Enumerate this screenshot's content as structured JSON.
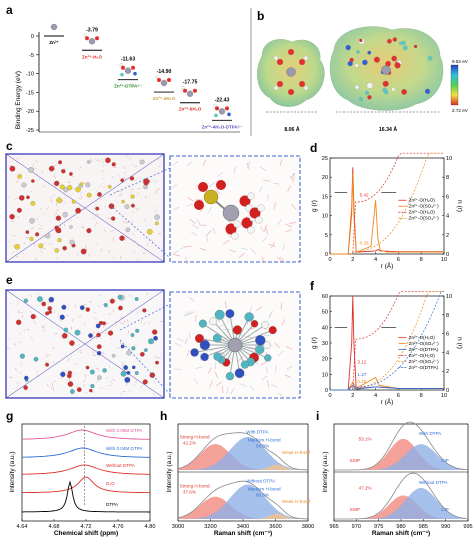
{
  "panels": {
    "a": "a",
    "b": "b",
    "c": "c",
    "d": "d",
    "e": "e",
    "f": "f",
    "g": "g",
    "h": "h",
    "i": "i"
  },
  "panel_a": {
    "ylabel": "Binding Energy (eV)",
    "yticks": [
      "0",
      "-5",
      "-10",
      "-15",
      "-20",
      "-25"
    ],
    "species": [
      {
        "label": "Zn²⁺",
        "energy": 0,
        "value_label": ""
      },
      {
        "label": "Zn²⁺-H₂O",
        "energy": -3.79,
        "value_label": "-3.79"
      },
      {
        "label": "Zn²⁺-DTPA⁵⁻",
        "energy": -11.63,
        "value_label": "-11.63"
      },
      {
        "label": "Zn²⁺-4H₂O",
        "energy": -14.9,
        "value_label": "-14.90"
      },
      {
        "label": "Zn²⁺-6H₂O",
        "energy": -17.75,
        "value_label": "-17.75"
      },
      {
        "label": "Zn²⁺-4H₂O-DTPA⁵⁻",
        "energy": -22.43,
        "value_label": "-22.43"
      }
    ]
  },
  "panel_b": {
    "size_left": "8.06 Å",
    "size_right": "16.34 Å",
    "colorbar_max": "9.52 eV",
    "colorbar_min": "2.72 eV"
  },
  "panel_d": {
    "xlabel": "r (Å)",
    "ylabel_left": "g (r)",
    "ylabel_right": "n (r)",
    "xticks": [
      "0",
      "2",
      "4",
      "6",
      "8",
      "10"
    ],
    "yticks_left": [
      "0",
      "5",
      "10",
      "15",
      "20",
      "25"
    ],
    "yticks_right": [
      "0",
      "2",
      "4",
      "6",
      "8",
      "10"
    ],
    "annotations": [
      "5.42",
      "0.28"
    ],
    "legend": [
      "Zn²⁺-O(H₂O)",
      "Zn²⁺-O(SO₄²⁻)",
      "Zn²⁺-O(H₂O)",
      "Zn²⁺-O(SO₄²⁻)"
    ]
  },
  "panel_f": {
    "xlabel": "r (Å)",
    "ylabel_left": "g (r)",
    "ylabel_right": "n (r)",
    "xticks": [
      "0",
      "2",
      "4",
      "6",
      "8",
      "10"
    ],
    "yticks_left": [
      "0",
      "10",
      "20",
      "30",
      "40",
      "50",
      "60"
    ],
    "yticks_right": [
      "0",
      "2",
      "4",
      "6",
      "8",
      "10"
    ],
    "annotations": [
      "3.12",
      "1.27",
      "0.18"
    ],
    "legend": [
      "Zn²⁺-O(H₂O)",
      "Zn²⁺-O(SO₄²⁻)",
      "Zn²⁺-O(DTPA)",
      "Zn²⁺-O(H₂O)",
      "Zn²⁺-O(SO₄²⁻)",
      "Zn²⁺-O(DTPA)"
    ]
  },
  "panel_g": {
    "xlabel": "Chemical shift (ppm)",
    "ylabel": "Intensity (a.u.)",
    "xticks": [
      "4.64",
      "4.68",
      "4.72",
      "4.76",
      "4.80"
    ],
    "traces": [
      "With 0.08M DTPA",
      "With 0.04M DTPA",
      "Without DTPA",
      "D₂O",
      "DTPA"
    ]
  },
  "panel_h": {
    "xlabel": "Raman shift (cm⁻¹)",
    "ylabel": "Intensity (a.u.)",
    "xticks": [
      "3000",
      "3200",
      "3400",
      "3600",
      "3800"
    ],
    "top": {
      "title": "With DTPA",
      "strong": "Strong H-bond",
      "strong_pct": "42.2%",
      "medium": "Medium H-bond",
      "medium_pct": "54.9%",
      "weak": "Weak H-bond"
    },
    "bottom": {
      "title": "Without DTPA",
      "strong": "Strong H-bond",
      "strong_pct": "37.6%",
      "medium": "Medium H-bond",
      "medium_pct": "60.8%",
      "weak": "Weak H-bond"
    }
  },
  "panel_i": {
    "xlabel": "Raman shift (cm⁻¹)",
    "ylabel": "Intensity (a.u.)",
    "xticks": [
      "965",
      "970",
      "975",
      "980",
      "985",
      "990",
      "995"
    ],
    "top": {
      "title": "With DTPA",
      "pct": "53.1%",
      "ssip": "SSIP",
      "cip": "CIP"
    },
    "bottom": {
      "title": "Without DTPA",
      "pct": "47.2%",
      "ssip": "SSIP",
      "cip": "CIP"
    }
  },
  "chart_data": [
    {
      "type": "scatter",
      "panel": "a",
      "ylabel": "Binding Energy (eV)",
      "ylim": [
        -25,
        0
      ],
      "categories": [
        "Zn²⁺",
        "Zn²⁺-H₂O",
        "Zn²⁺-DTPA⁵⁻",
        "Zn²⁺-4H₂O",
        "Zn²⁺-6H₂O",
        "Zn²⁺-4H₂O-DTPA⁵⁻"
      ],
      "values": [
        0,
        -3.79,
        -11.63,
        -14.9,
        -17.75,
        -22.43
      ]
    },
    {
      "type": "line",
      "panel": "d",
      "xlabel": "r (Å)",
      "ylabel": "g (r)",
      "xlim": [
        0,
        10
      ],
      "ylim": [
        0,
        25
      ],
      "series": [
        {
          "name": "Zn²⁺-O(H₂O)",
          "x": [
            1.6,
            1.9,
            2.0,
            2.1,
            2.3,
            4.0,
            4.2,
            4.4,
            6
          ],
          "y": [
            0,
            12,
            22.6,
            12,
            0.5,
            0.8,
            1.2,
            0.8,
            0.6
          ]
        },
        {
          "name": "Zn²⁺-O(SO₄²⁻)",
          "x": [
            1.6,
            1.9,
            2.0,
            2.1,
            2.3,
            3.6,
            4.0,
            4.2,
            4.4,
            5
          ],
          "y": [
            0,
            10,
            21,
            10,
            0.4,
            2,
            14,
            4,
            1,
            0.5
          ]
        }
      ]
    },
    {
      "type": "line",
      "panel": "f",
      "xlabel": "r (Å)",
      "ylabel": "g (r)",
      "xlim": [
        0,
        10
      ],
      "ylim": [
        0,
        60
      ],
      "series": [
        {
          "name": "Zn²⁺-O(H₂O)",
          "x": [
            1.6,
            1.9,
            2.0,
            2.1,
            2.3,
            4.0,
            6
          ],
          "y": [
            0,
            30,
            60,
            30,
            1,
            2,
            1
          ]
        },
        {
          "name": "Zn²⁺-O(SO₄²⁻)",
          "x": [
            1.6,
            2.0,
            2.3,
            4.0,
            4.3,
            6
          ],
          "y": [
            0,
            5,
            1,
            8,
            3,
            1
          ]
        },
        {
          "name": "Zn²⁺-O(DTPA)",
          "x": [
            1.6,
            2.0,
            2.3,
            4.0,
            6
          ],
          "y": [
            0,
            3,
            0.5,
            2,
            1
          ]
        }
      ]
    },
    {
      "type": "line",
      "panel": "g",
      "xlabel": "Chemical shift (ppm)",
      "ylabel": "Intensity (a.u.)",
      "xlim": [
        4.64,
        4.8
      ],
      "series": [
        {
          "name": "With 0.08M DTPA",
          "peak_x": 4.715
        },
        {
          "name": "With 0.04M DTPA",
          "peak_x": 4.716
        },
        {
          "name": "Without DTPA",
          "peak_x": 4.718
        },
        {
          "name": "D₂O",
          "peak_x": 4.72
        },
        {
          "name": "DTPA",
          "peak_x": 4.7
        }
      ]
    },
    {
      "type": "area",
      "panel": "h",
      "xlabel": "Raman shift (cm⁻¹)",
      "ylabel": "Intensity (a.u.)",
      "xlim": [
        3000,
        3800
      ],
      "series": [
        {
          "name": "With DTPA",
          "strong_pct": 42.2,
          "medium_pct": 54.9
        },
        {
          "name": "Without DTPA",
          "strong_pct": 37.6,
          "medium_pct": 60.8
        }
      ]
    },
    {
      "type": "area",
      "panel": "i",
      "xlabel": "Raman shift (cm⁻¹)",
      "ylabel": "Intensity (a.u.)",
      "xlim": [
        965,
        995
      ],
      "series": [
        {
          "name": "With DTPA",
          "ssip_pct": 53.1
        },
        {
          "name": "Without DTPA",
          "ssip_pct": 47.2
        }
      ]
    }
  ],
  "colors": {
    "red": "#e0302a",
    "orange": "#ef8a1c",
    "blue": "#2b6fd6",
    "pink": "#e05a9a",
    "green": "#2a8a2a",
    "gold": "#c8a23a",
    "purple": "#6a4dc0",
    "salmon": "#f08a80",
    "lightblue": "#8fb0e6",
    "peach": "#f5c28a"
  }
}
